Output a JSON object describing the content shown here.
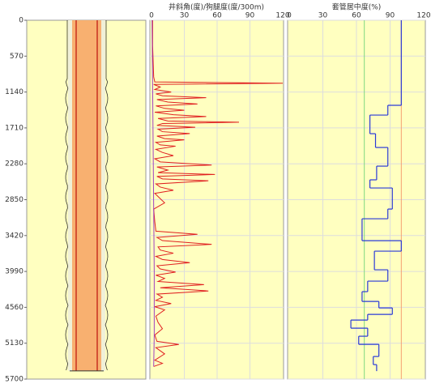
{
  "chart_data": [
    {
      "type": "wellbore",
      "ylim": [
        0,
        5700
      ],
      "yticks": [
        0,
        570,
        1140,
        1710,
        2280,
        2850,
        3420,
        3990,
        4560,
        5130,
        5700
      ],
      "casing_depth": 5570,
      "grid": true
    },
    {
      "type": "line",
      "title": "井斜角(度)/狗腿度(度/300m)",
      "xlim": [
        0,
        120
      ],
      "xticks": [
        0,
        30,
        60,
        90,
        120
      ],
      "ylim": [
        0,
        5700
      ],
      "series": [
        {
          "color": "#e02020",
          "depth": [
            0,
            400,
            900,
            980,
            1000,
            1020,
            1060,
            1100,
            1140,
            1170,
            1200,
            1230,
            1260,
            1300,
            1330,
            1360,
            1400,
            1430,
            1460,
            1500,
            1530,
            1560,
            1600,
            1620,
            1640,
            1670,
            1700,
            1730,
            1770,
            1800,
            1840,
            1880,
            1900,
            1940,
            1980,
            2000,
            2050,
            2100,
            2150,
            2200,
            2250,
            2300,
            2330,
            2380,
            2420,
            2450,
            2480,
            2520,
            2550,
            2600,
            2650,
            2700,
            2750,
            2800,
            2900,
            3000,
            3200,
            3350,
            3400,
            3450,
            3500,
            3560,
            3600,
            3650,
            3700,
            3750,
            3800,
            3850,
            3900,
            3950,
            4000,
            4050,
            4100,
            4150,
            4200,
            4250,
            4300,
            4350,
            4400,
            4450,
            4500,
            4550,
            4600,
            4700,
            4800,
            4900,
            5000,
            5100,
            5150,
            5200,
            5300,
            5400,
            5450,
            5500
          ],
          "values": [
            1,
            1,
            2,
            3,
            120,
            2,
            8,
            3,
            18,
            4,
            10,
            50,
            5,
            15,
            42,
            4,
            12,
            30,
            3,
            20,
            50,
            6,
            15,
            80,
            10,
            5,
            40,
            6,
            10,
            35,
            5,
            12,
            30,
            4,
            8,
            22,
            4,
            10,
            20,
            3,
            8,
            55,
            5,
            15,
            6,
            58,
            5,
            10,
            52,
            4,
            8,
            20,
            3,
            6,
            12,
            2,
            3,
            4,
            42,
            5,
            10,
            55,
            6,
            8,
            20,
            4,
            10,
            35,
            5,
            8,
            22,
            4,
            12,
            6,
            48,
            8,
            52,
            5,
            10,
            4,
            18,
            3,
            12,
            4,
            6,
            10,
            3,
            5,
            25,
            4,
            12,
            3,
            10,
            2
          ]
        },
        {
          "color": "#a040c0",
          "depth": [
            0,
            1000,
            2000,
            3000,
            4000,
            5000,
            5500
          ],
          "values": [
            0.5,
            1,
            1.5,
            2,
            2.5,
            2.5,
            2
          ]
        }
      ]
    },
    {
      "type": "step",
      "title": "套管居中度(%)",
      "xlim": [
        0,
        120
      ],
      "xticks": [
        0,
        30,
        60,
        90,
        120
      ],
      "ylim": [
        0,
        5700
      ],
      "reference_lines": [
        {
          "value": 67,
          "color": "#80d880"
        },
        {
          "value": 100,
          "color": "#f4a070"
        }
      ],
      "series": [
        {
          "color": "#2a3ad8",
          "bins": [
            0,
            1351,
            1506,
            1802,
            2021,
            2317,
            2535,
            2664,
            2999,
            3153,
            3501,
            3668,
            3964,
            4144,
            4311,
            4466,
            4569,
            4672,
            4762,
            4891,
            5019,
            5148,
            5341,
            5470,
            5573
          ],
          "values": [
            100,
            88,
            72,
            77,
            88,
            78,
            72,
            92,
            88,
            65,
            100,
            76,
            88,
            70,
            65,
            80,
            92,
            70,
            55,
            70,
            62,
            80,
            75,
            78
          ]
        }
      ]
    }
  ]
}
